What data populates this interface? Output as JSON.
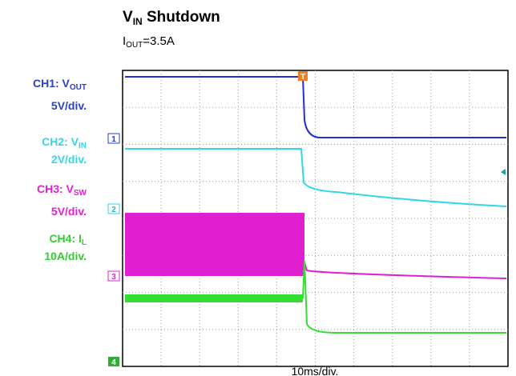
{
  "title": {
    "main": "V",
    "sub": "IN",
    "rest": " Shutdown"
  },
  "subtitle": {
    "main": "I",
    "sub": "OUT",
    "rest": "=3.5A"
  },
  "channels": [
    {
      "name": "CH1: V",
      "sub": "OUT",
      "scale": "5V/div.",
      "marker": "1"
    },
    {
      "name": "CH2: V",
      "sub": "IN",
      "scale": "2V/div.",
      "marker": "2"
    },
    {
      "name": "CH3: V",
      "sub": "SW",
      "scale": "5V/div.",
      "marker": "3"
    },
    {
      "name": "CH4: I",
      "sub": "L",
      "scale": "10A/div.",
      "marker": "4"
    }
  ],
  "trigger": "T",
  "time_scale": "10ms/div."
}
